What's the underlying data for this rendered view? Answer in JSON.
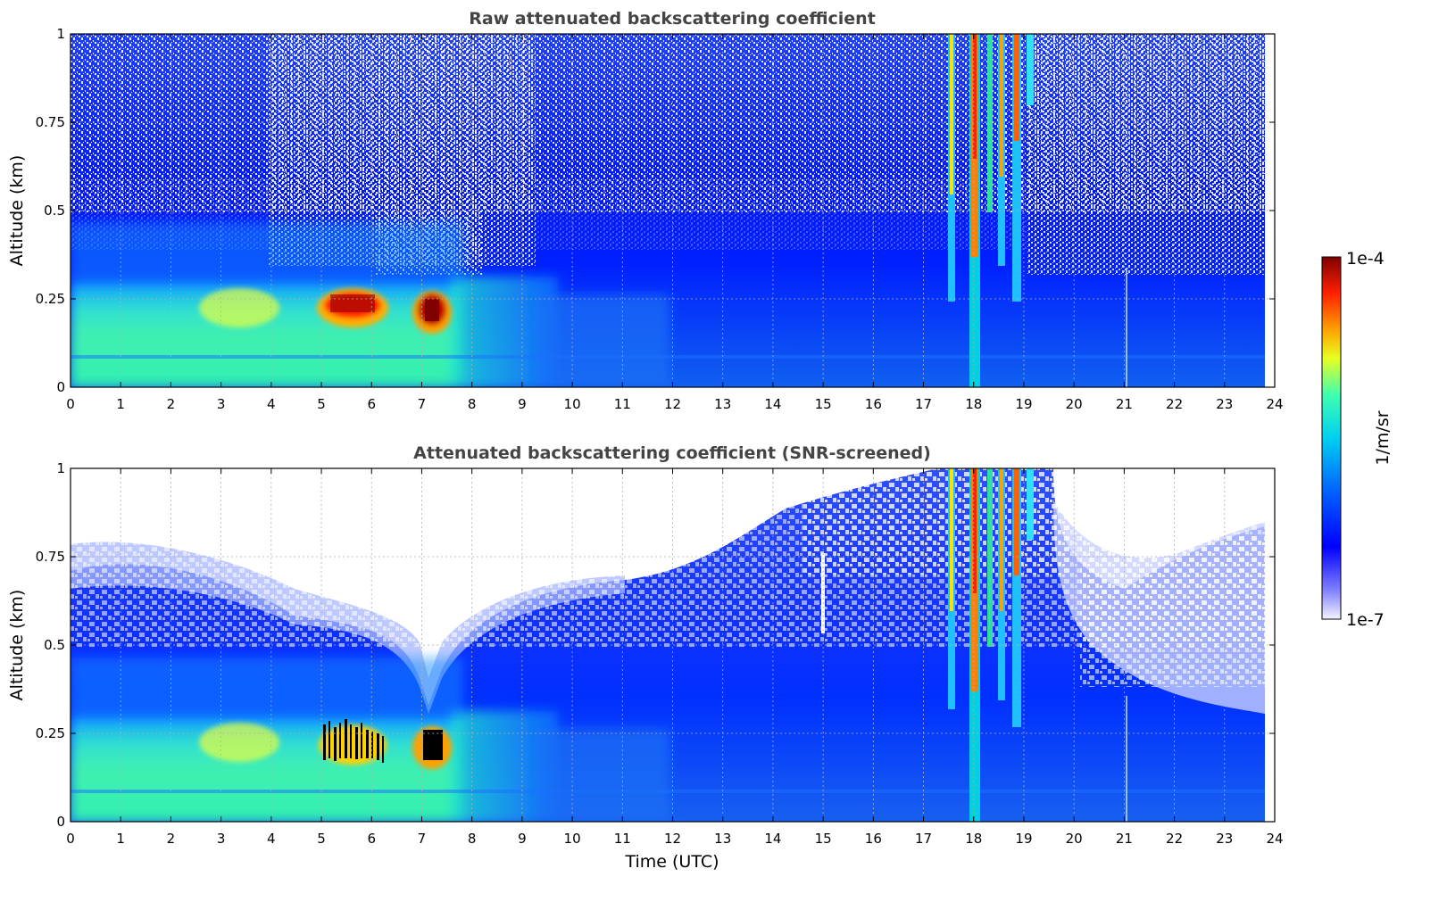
{
  "chart_data": [
    {
      "type": "heatmap",
      "title": "Raw attenuated backscattering coefficient",
      "xlabel": "",
      "ylabel": "Altitude (km)",
      "xlim": [
        0,
        24
      ],
      "ylim": [
        0,
        1
      ],
      "xticks": [
        "0",
        "1",
        "2",
        "3",
        "4",
        "5",
        "6",
        "7",
        "8",
        "9",
        "10",
        "11",
        "12",
        "13",
        "14",
        "15",
        "16",
        "17",
        "18",
        "19",
        "20",
        "21",
        "22",
        "23",
        "24"
      ],
      "yticks": [
        "0",
        "0.25",
        "0.5",
        "0.75",
        "1"
      ],
      "grid": true,
      "data_extent_hours": [
        0,
        23.8
      ],
      "features": [
        {
          "name": "boundary layer (high signal)",
          "x": [
            0,
            7.6
          ],
          "y": [
            0,
            0.28
          ]
        },
        {
          "name": "aerosol peaks (dark red)",
          "x": [
            5.0,
            6.3
          ],
          "y": [
            0.18,
            0.27
          ]
        },
        {
          "name": "aerosol peak (dark red)",
          "x": [
            7.0,
            7.4
          ],
          "y": [
            0.16,
            0.27
          ]
        },
        {
          "name": "rain / cloud streaks",
          "x": [
            17.5,
            19.3
          ],
          "y": [
            0,
            1
          ]
        }
      ]
    },
    {
      "type": "heatmap",
      "title": "Attenuated backscattering coefficient (SNR-screened)",
      "xlabel": "Time (UTC)",
      "ylabel": "Altitude (km)",
      "xlim": [
        0,
        24
      ],
      "ylim": [
        0,
        1
      ],
      "xticks": [
        "0",
        "1",
        "2",
        "3",
        "4",
        "5",
        "6",
        "7",
        "8",
        "9",
        "10",
        "11",
        "12",
        "13",
        "14",
        "15",
        "16",
        "17",
        "18",
        "19",
        "20",
        "21",
        "22",
        "23",
        "24"
      ],
      "yticks": [
        "0",
        "0.25",
        "0.5",
        "0.75",
        "1"
      ],
      "grid": true,
      "data_extent_hours": [
        0,
        23.8
      ],
      "features": [
        {
          "name": "boundary layer (high signal)",
          "x": [
            0,
            7.6
          ],
          "y": [
            0,
            0.28
          ]
        },
        {
          "name": "saturated (black)",
          "x": [
            5.0,
            6.3
          ],
          "y": [
            0.18,
            0.28
          ]
        },
        {
          "name": "saturated (black)",
          "x": [
            7.0,
            7.4
          ],
          "y": [
            0.17,
            0.27
          ]
        },
        {
          "name": "rain / cloud streaks",
          "x": [
            17.5,
            19.3
          ],
          "y": [
            0,
            1
          ]
        }
      ]
    }
  ],
  "colorbar": {
    "label": "1/m/sr",
    "max_label": "1e-4",
    "min_label": "1e-7",
    "colormap": [
      "#ffffff",
      "#0000ff",
      "#00d4ff",
      "#ffff00",
      "#ff0000",
      "#800000"
    ]
  }
}
